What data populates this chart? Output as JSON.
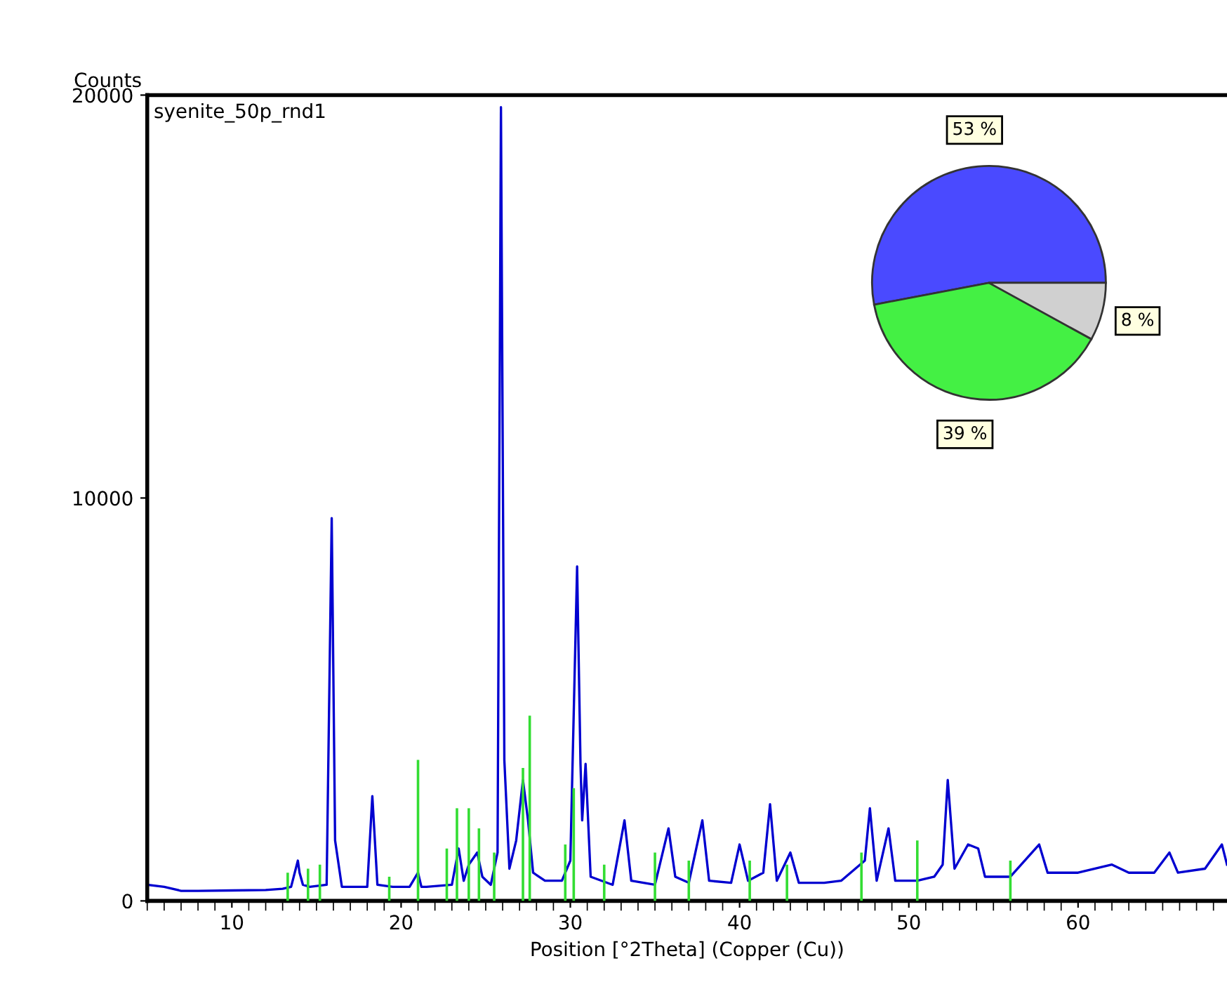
{
  "chart_data": [
    {
      "type": "line",
      "ylabel": "Counts",
      "xlabel": "Position [°2Theta] (Copper (Cu))",
      "annotations": [
        "syenite_50p_rnd1"
      ],
      "xlim": [
        5,
        68.8
      ],
      "ylim": [
        0,
        20000
      ],
      "xticks": [
        10,
        20,
        30,
        40,
        50,
        60
      ],
      "yticks": [
        0,
        10000,
        20000
      ],
      "grid": false,
      "legend": false,
      "series": [
        {
          "color": "#0000d0",
          "x": [
            5,
            6,
            7,
            8,
            10,
            12,
            13,
            13.5,
            13.9,
            14.0,
            14.2,
            14.6,
            15.6,
            15.9,
            16.1,
            16.5,
            18.0,
            18.3,
            18.6,
            19.5,
            20.5,
            21.0,
            21.2,
            21.5,
            23.0,
            23.4,
            23.7,
            24.0,
            24.5,
            24.8,
            25.3,
            25.7,
            25.9,
            26.1,
            26.4,
            26.8,
            27.2,
            27.5,
            27.8,
            28.5,
            29.5,
            30.0,
            30.4,
            30.6,
            30.7,
            30.9,
            31.2,
            32.5,
            33.2,
            33.6,
            35.0,
            35.8,
            36.2,
            37.0,
            37.8,
            38.2,
            39.5,
            40.0,
            40.5,
            41.4,
            41.8,
            42.2,
            43.0,
            43.5,
            45.0,
            46.0,
            47.4,
            47.7,
            48.1,
            48.8,
            49.2,
            50.5,
            51.5,
            52.0,
            52.3,
            52.7,
            53.5,
            54.1,
            54.5,
            56.0,
            57.7,
            58.2,
            60.0,
            62.0,
            63.0,
            64.5,
            65.4,
            65.9,
            67.5,
            68.5,
            68.8
          ],
          "values": [
            400,
            350,
            250,
            250,
            260,
            270,
            300,
            350,
            1000,
            700,
            400,
            350,
            400,
            9500,
            1500,
            350,
            350,
            2600,
            400,
            350,
            350,
            700,
            350,
            350,
            400,
            1300,
            500,
            900,
            1200,
            600,
            400,
            1200,
            19700,
            3500,
            800,
            1500,
            3000,
            2000,
            700,
            500,
            500,
            1000,
            8300,
            3400,
            2000,
            3400,
            600,
            400,
            2000,
            500,
            400,
            1800,
            600,
            450,
            2000,
            500,
            450,
            1400,
            500,
            700,
            2400,
            500,
            1200,
            450,
            450,
            500,
            1000,
            2300,
            500,
            1800,
            500,
            500,
            600,
            900,
            3000,
            800,
            1400,
            1300,
            600,
            600,
            1400,
            700,
            700,
            900,
            700,
            700,
            1200,
            700,
            800,
            1400,
            900
          ]
        },
        {
          "type": "bar",
          "color": "#33dd33",
          "x": [
            13.3,
            14.5,
            15.2,
            19.3,
            21.0,
            22.7,
            23.3,
            24.0,
            24.6,
            25.5,
            27.2,
            27.6,
            29.7,
            30.2,
            32.0,
            35.0,
            37.0,
            40.6,
            42.8,
            47.2,
            50.5,
            56.0
          ],
          "values": [
            700,
            800,
            900,
            600,
            3500,
            1300,
            2300,
            2300,
            1800,
            1200,
            3300,
            4600,
            1400,
            2800,
            900,
            1200,
            1000,
            1000,
            900,
            1200,
            1500,
            1000
          ]
        }
      ]
    },
    {
      "type": "pie",
      "categories": [
        null,
        null,
        null
      ],
      "values": [
        53,
        39,
        8
      ],
      "colors": [
        "#4a4aff",
        "#44f044",
        "#d0d0d0"
      ],
      "value_labels": [
        "53 %",
        "39 %",
        "8 %"
      ]
    }
  ]
}
